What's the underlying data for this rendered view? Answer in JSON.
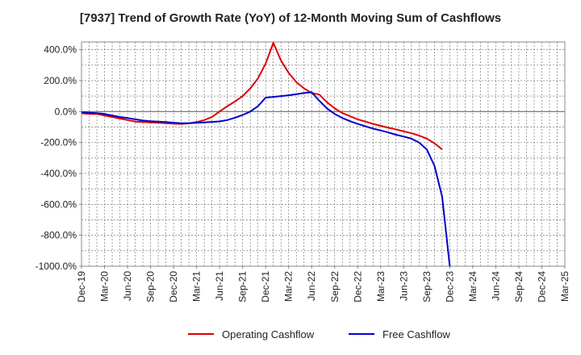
{
  "chart_data": {
    "type": "line",
    "title": "[7937]  Trend of Growth Rate (YoY) of 12-Month Moving Sum of Cashflows",
    "x_ticks": [
      "Dec-19",
      "Mar-20",
      "Jun-20",
      "Sep-20",
      "Dec-20",
      "Mar-21",
      "Jun-21",
      "Sep-21",
      "Dec-21",
      "Mar-22",
      "Jun-22",
      "Sep-22",
      "Dec-22",
      "Mar-23",
      "Jun-23",
      "Sep-23",
      "Dec-23",
      "Mar-24",
      "Jun-24",
      "Sep-24",
      "Dec-24",
      "Mar-25"
    ],
    "y_ticks": [
      "400.0%",
      "200.0%",
      "0.0%",
      "-200.0%",
      "-400.0%",
      "-600.0%",
      "-800.0%",
      "-1000.0%"
    ],
    "ylim": [
      -1000,
      450
    ],
    "grid": true,
    "legend_position": "bottom",
    "series": [
      {
        "name": "Operating Cashflow",
        "color": "#dd0000",
        "values": [
          -10,
          -15,
          -15,
          -25,
          -35,
          -45,
          -55,
          -65,
          -68,
          -70,
          -72,
          -76,
          -78,
          -80,
          -75,
          -68,
          -55,
          -35,
          0,
          35,
          65,
          100,
          150,
          215,
          310,
          445,
          330,
          250,
          190,
          150,
          120,
          110,
          60,
          20,
          -10,
          -30,
          -50,
          -65,
          -80,
          -92,
          -105,
          -115,
          -128,
          -140,
          -155,
          -175,
          -205,
          -245
        ]
      },
      {
        "name": "Free Cashflow",
        "color": "#0000cc",
        "values": [
          -5,
          -8,
          -10,
          -15,
          -25,
          -35,
          -42,
          -50,
          -58,
          -62,
          -65,
          -68,
          -72,
          -76,
          -75,
          -72,
          -70,
          -67,
          -64,
          -55,
          -40,
          -22,
          0,
          35,
          90,
          95,
          100,
          105,
          112,
          120,
          125,
          70,
          20,
          -15,
          -42,
          -62,
          -80,
          -95,
          -110,
          -122,
          -135,
          -150,
          -162,
          -175,
          -200,
          -245,
          -350,
          -550,
          -1000
        ]
      }
    ]
  }
}
